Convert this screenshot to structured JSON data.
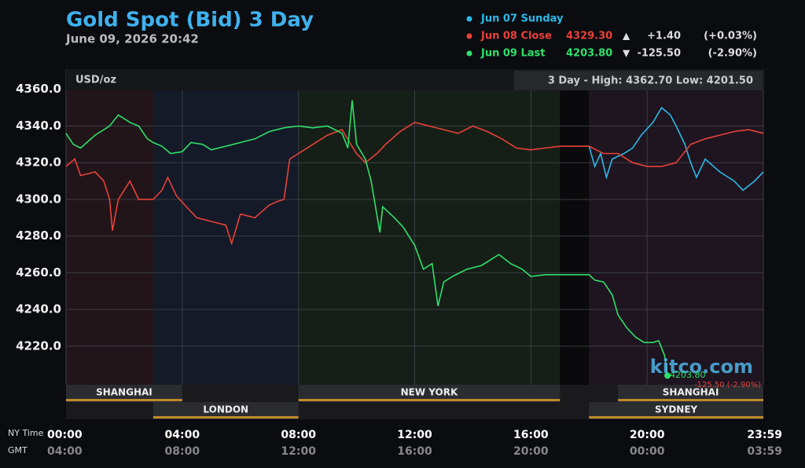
{
  "chart_data": {
    "type": "line",
    "title": "Gold Spot (Bid) 3 Day",
    "subtitle": "June 09, 2026 20:42",
    "unit_label": "USD/oz",
    "range_label": "3 Day - High: 4362.70  Low: 4201.50",
    "watermark": "kitco.com",
    "x_label": "NY Time",
    "x2_label": "GMT",
    "xlim": [
      0,
      24
    ],
    "xticks": [
      {
        "value": 0,
        "label": "00:00"
      },
      {
        "value": 4,
        "label": "04:00"
      },
      {
        "value": 8,
        "label": "08:00"
      },
      {
        "value": 12,
        "label": "12:00"
      },
      {
        "value": 16,
        "label": "16:00"
      },
      {
        "value": 20,
        "label": "20:00"
      },
      {
        "value": 24,
        "label": "23:59"
      }
    ],
    "x2ticklabels": [
      "04:00",
      "08:00",
      "12:00",
      "16:00",
      "20:00",
      "00:00",
      "03:59"
    ],
    "ylim": [
      4199,
      4371
    ],
    "yticks": [
      {
        "value": 4220,
        "label": "4220.0"
      },
      {
        "value": 4240,
        "label": "4240.0"
      },
      {
        "value": 4260,
        "label": "4260.0"
      },
      {
        "value": 4280,
        "label": "4280.0"
      },
      {
        "value": 4300,
        "label": "4300.0"
      },
      {
        "value": 4320,
        "label": "4320.0"
      },
      {
        "value": 4340,
        "label": "4340.0"
      },
      {
        "value": 4360,
        "label": "4360.0"
      }
    ],
    "grid": true,
    "sessions": [
      {
        "name": "SHANGHAI",
        "start": 0,
        "end": 4,
        "row": 0,
        "color": "#221519"
      },
      {
        "name": "LONDON",
        "start": 3,
        "end": 8,
        "row": 1,
        "color": "#141a27"
      },
      {
        "name": "NEW YORK",
        "start": 8,
        "end": 17,
        "row": 0,
        "color": "#161f17"
      },
      {
        "name": "SHANGHAI",
        "start": 19,
        "end": 24,
        "row": 0,
        "color": "#1e1520"
      },
      {
        "name": "SYDNEY",
        "start": 18,
        "end": 24,
        "row": 1,
        "color": "#1e1520"
      }
    ],
    "series": [
      {
        "name": "Jun 07 Sunday",
        "color": "#2cb8e8",
        "x": [
          18.0,
          18.2,
          18.4,
          18.6,
          18.8,
          19.2,
          19.5,
          19.8,
          20.2,
          20.5,
          20.8,
          21.0,
          21.3,
          21.5,
          21.7,
          22.0,
          22.5,
          23.0,
          23.3,
          23.7,
          24.0
        ],
        "values": [
          4329,
          4318,
          4325,
          4312,
          4322,
          4325,
          4328,
          4335,
          4342,
          4350,
          4346,
          4340,
          4330,
          4320,
          4312,
          4322,
          4315,
          4310,
          4305,
          4310,
          4315
        ]
      },
      {
        "name": "Jun 08 Close",
        "color": "#e8413a",
        "last": "4329.30",
        "arrow": "▲",
        "change": "+1.40",
        "change_pct": "(+0.03%)",
        "x": [
          0,
          0.3,
          0.5,
          1.0,
          1.3,
          1.5,
          1.6,
          1.8,
          2.2,
          2.5,
          3.0,
          3.3,
          3.5,
          3.8,
          4.2,
          4.5,
          5.0,
          5.5,
          5.7,
          6.0,
          6.5,
          7.0,
          7.3,
          7.5,
          7.7,
          8.0,
          8.5,
          9.0,
          9.5,
          9.8,
          10.0,
          10.3,
          10.7,
          11.0,
          11.5,
          12.0,
          12.5,
          13.0,
          13.5,
          14.0,
          14.5,
          15.0,
          15.5,
          16.0,
          16.5,
          17.0,
          18.0,
          18.5,
          19.0,
          19.5,
          20.0,
          20.5,
          21.0,
          21.5,
          22.0,
          22.5,
          23.0,
          23.5,
          24.0
        ],
        "values": [
          4318,
          4322,
          4313,
          4315,
          4310,
          4300,
          4283,
          4300,
          4310,
          4300,
          4300,
          4305,
          4312,
          4302,
          4295,
          4290,
          4288,
          4286,
          4276,
          4292,
          4290,
          4297,
          4299,
          4300,
          4322,
          4325,
          4330,
          4335,
          4338,
          4330,
          4325,
          4320,
          4325,
          4330,
          4337,
          4342,
          4340,
          4338,
          4336,
          4340,
          4337,
          4333,
          4328,
          4327,
          4328,
          4329,
          4329,
          4325,
          4325,
          4320,
          4318,
          4318,
          4320,
          4330,
          4333,
          4335,
          4337,
          4338,
          4336
        ]
      },
      {
        "name": "Jun 09 Last",
        "color": "#2ee06b",
        "last": "4203.80",
        "arrow": "▼",
        "change": "-125.50",
        "change_pct": "(-2.90%)",
        "end_label": "4203.80",
        "end_change": "-125.50 (-2.90%)",
        "x": [
          0,
          0.25,
          0.5,
          1.0,
          1.5,
          1.8,
          2.2,
          2.5,
          2.8,
          3.0,
          3.3,
          3.6,
          4.0,
          4.3,
          4.7,
          5.0,
          5.5,
          6.0,
          6.5,
          7.0,
          7.5,
          8.0,
          8.5,
          9.0,
          9.5,
          9.7,
          9.85,
          10.0,
          10.3,
          10.5,
          10.8,
          10.9,
          11.3,
          11.6,
          12.0,
          12.3,
          12.6,
          12.8,
          13.0,
          13.3,
          13.8,
          14.3,
          14.9,
          15.3,
          15.7,
          16.0,
          16.5,
          17.0,
          18.0,
          18.2,
          18.5,
          18.8,
          19.0,
          19.3,
          19.6,
          19.9,
          20.2,
          20.4,
          20.6,
          20.7
        ],
        "values": [
          4336,
          4330,
          4328,
          4335,
          4340,
          4346,
          4342,
          4340,
          4333,
          4331,
          4329,
          4325,
          4326,
          4331,
          4330,
          4327,
          4329,
          4331,
          4333,
          4337,
          4339,
          4340,
          4339,
          4340,
          4336,
          4328,
          4354,
          4330,
          4322,
          4310,
          4282,
          4296,
          4290,
          4285,
          4275,
          4262,
          4265,
          4242,
          4255,
          4258,
          4262,
          4264,
          4270,
          4265,
          4262,
          4258,
          4259,
          4259,
          4259,
          4256,
          4255,
          4248,
          4237,
          4230,
          4225,
          4222,
          4222,
          4223,
          4215,
          4204
        ]
      }
    ]
  }
}
